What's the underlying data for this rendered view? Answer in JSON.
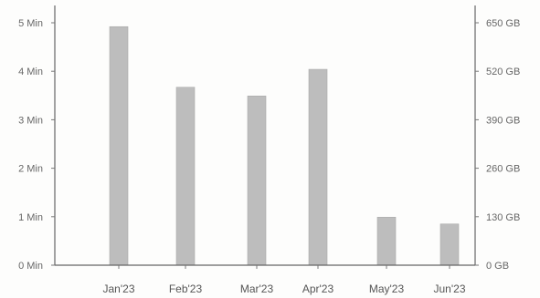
{
  "chart_data": {
    "type": "bar",
    "categories": [
      "Jan'23",
      "Feb'23",
      "Mar'23",
      "Apr'23",
      "May'23",
      "Jun'23"
    ],
    "series": [
      {
        "values": [
          4.92,
          3.67,
          3.49,
          4.04,
          0.99,
          0.85
        ]
      }
    ],
    "ylim": [
      0,
      5
    ],
    "y_ticks": [
      0,
      1,
      2,
      3,
      4,
      5
    ],
    "y_tick_labels": [
      "0 Min",
      "1 Min",
      "2 Min",
      "3 Min",
      "4 Min",
      "5 Min"
    ],
    "y2_ticks": [
      0,
      130,
      260,
      390,
      520,
      650
    ],
    "y2_tick_labels": [
      "0 GB",
      "130 GB",
      "260 GB",
      "390 GB",
      "520 GB",
      "650 GB"
    ],
    "grid": false,
    "legend": "none",
    "colors": {
      "bar": "#bdbdbd",
      "axis": "#666666",
      "text": "#666666"
    }
  }
}
